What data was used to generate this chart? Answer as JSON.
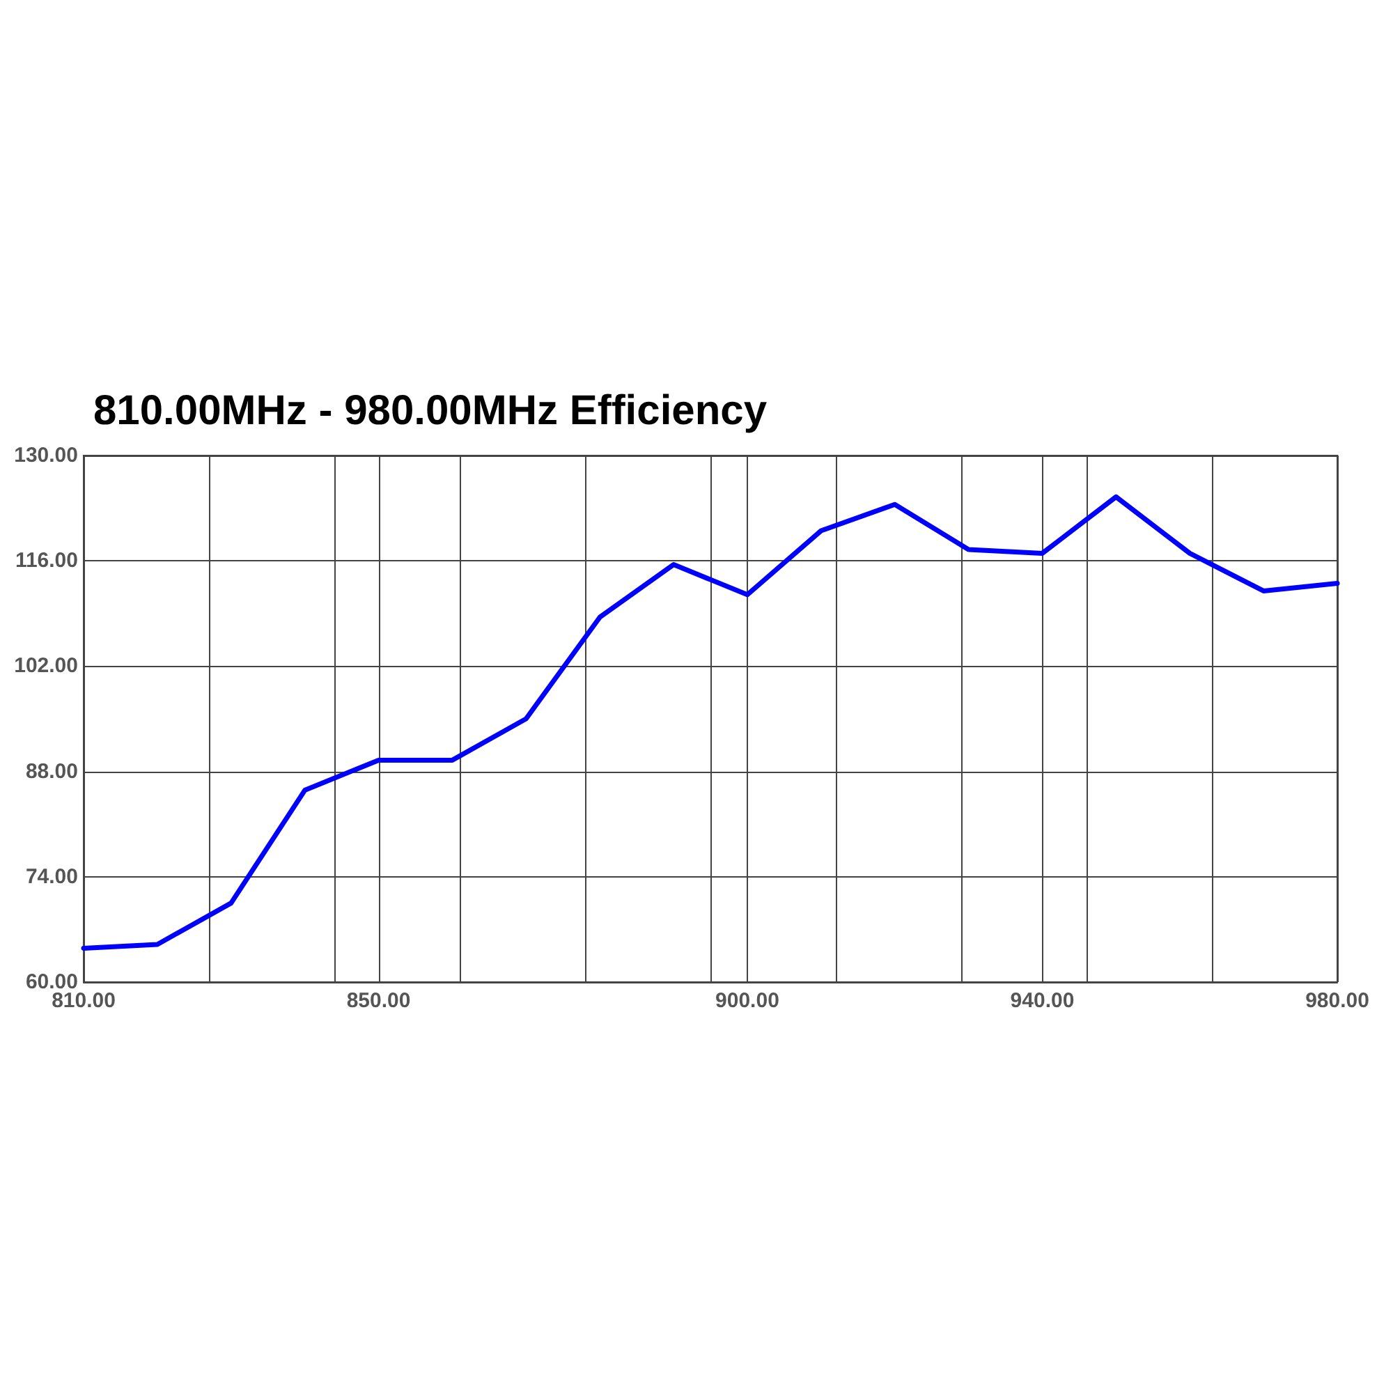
{
  "chart_data": {
    "type": "line",
    "title": "810.00MHz - 980.00MHz Efficiency",
    "x": [
      810,
      820,
      830,
      840,
      850,
      860,
      870,
      880,
      890,
      900,
      910,
      920,
      930,
      940,
      950,
      960,
      970,
      980
    ],
    "series": [
      {
        "color": "#0000ff",
        "values": [
          64.5,
          65,
          70.5,
          85.5,
          89.5,
          89.5,
          95,
          108.5,
          115.5,
          111.5,
          120,
          123.5,
          117.5,
          117,
          124.5,
          117,
          112,
          113
        ]
      }
    ],
    "xlim": [
      810,
      980
    ],
    "xticks": [
      {
        "value": 810,
        "label": "810.00"
      },
      {
        "value": 827,
        "label": null
      },
      {
        "value": 844,
        "label": null
      },
      {
        "value": 850,
        "label": "850.00"
      },
      {
        "value": 861,
        "label": null
      },
      {
        "value": 878,
        "label": null
      },
      {
        "value": 895,
        "label": null
      },
      {
        "value": 900,
        "label": "900.00"
      },
      {
        "value": 912,
        "label": null
      },
      {
        "value": 929,
        "label": null
      },
      {
        "value": 940,
        "label": "940.00"
      },
      {
        "value": 946,
        "label": null
      },
      {
        "value": 963,
        "label": null
      },
      {
        "value": 980,
        "label": "980.00"
      }
    ],
    "ylim": [
      60,
      130
    ],
    "yticks": [
      {
        "value": 60,
        "label": "60.00"
      },
      {
        "value": 74,
        "label": "74.00"
      },
      {
        "value": 88,
        "label": "88.00"
      },
      {
        "value": 102,
        "label": "102.00"
      },
      {
        "value": 116,
        "label": "116.00"
      },
      {
        "value": 130,
        "label": "130.00"
      }
    ],
    "grid": true,
    "marker": "none",
    "line_style": "solid"
  }
}
